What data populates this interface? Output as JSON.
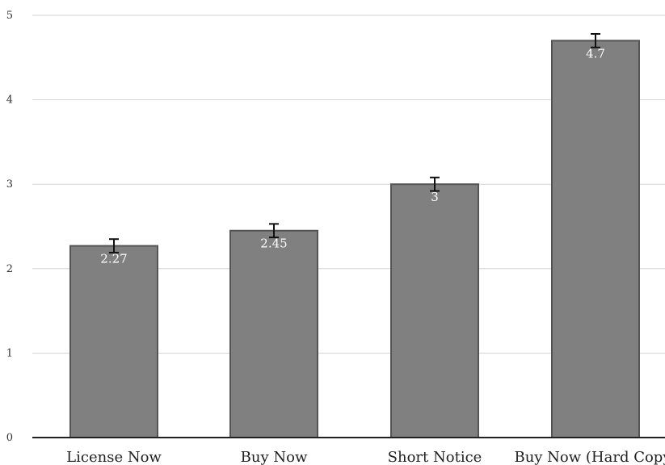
{
  "chart_data": {
    "type": "bar",
    "title": "",
    "xlabel": "",
    "ylabel": "",
    "categories": [
      "License Now",
      "Buy Now",
      "Short Notice",
      "Buy Now (Hard Copy)"
    ],
    "values": [
      2.27,
      2.45,
      3,
      4.7
    ],
    "data_labels": [
      "2.27",
      "2.45",
      "3",
      "4.7"
    ],
    "error_bars": [
      0.08,
      0.08,
      0.08,
      0.08
    ],
    "ylim": [
      0,
      5
    ],
    "y_ticks": [
      0,
      1,
      2,
      3,
      4,
      5
    ],
    "grid": true,
    "legend": "none",
    "colors": {
      "bar_fill": "#7f807f",
      "bar_stroke": "#545454",
      "grid": "#d4d4d4",
      "axis": "#222222"
    }
  }
}
